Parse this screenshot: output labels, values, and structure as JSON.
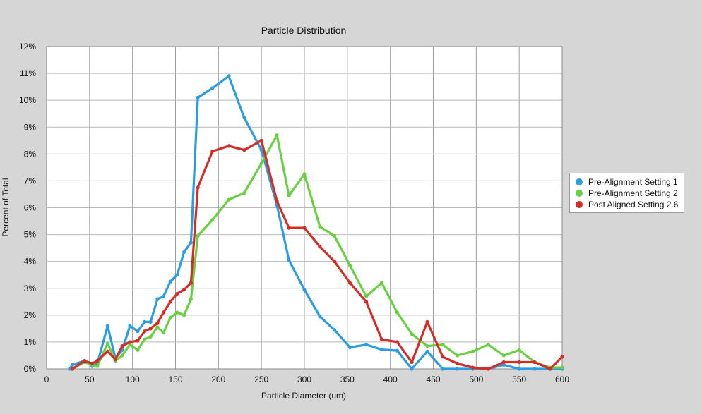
{
  "chart_data": {
    "type": "line",
    "title": "Particle Distribution",
    "xlabel": "Particle Diameter (um)",
    "ylabel": "Percent of Total",
    "xlim": [
      0,
      600
    ],
    "ylim": [
      0,
      12
    ],
    "xticks": [
      0,
      50,
      100,
      150,
      200,
      250,
      300,
      350,
      400,
      450,
      500,
      550,
      600
    ],
    "xtick_labels": [
      "0",
      "50",
      "100",
      "150",
      "200",
      "250",
      "300",
      "350",
      "400",
      "450",
      "500",
      "550",
      "600"
    ],
    "yticks": [
      0,
      1,
      2,
      3,
      4,
      5,
      6,
      7,
      8,
      9,
      10,
      11,
      12
    ],
    "ytick_labels": [
      "0%",
      "1%",
      "2%",
      "3%",
      "4%",
      "5%",
      "6%",
      "7%",
      "8%",
      "9%",
      "10%",
      "11%",
      "12%"
    ],
    "grid": true,
    "legend_position": "right",
    "series": [
      {
        "name": "Pre-Alignment Setting 1",
        "color": "#2a9de1",
        "x": [
          27,
          30,
          44,
          53,
          59,
          71,
          80,
          88,
          97,
          106,
          114,
          121,
          129,
          136,
          144,
          152,
          160,
          168,
          176,
          193,
          212,
          230,
          250,
          268,
          282,
          300,
          318,
          335,
          353,
          372,
          390,
          408,
          425,
          443,
          461,
          478,
          496,
          514,
          532,
          550,
          568,
          586,
          600
        ],
        "y": [
          0.0,
          0.15,
          0.3,
          0.1,
          0.2,
          1.6,
          0.4,
          0.7,
          1.6,
          1.4,
          1.75,
          1.75,
          2.6,
          2.7,
          3.25,
          3.5,
          4.35,
          4.7,
          10.1,
          10.45,
          10.9,
          9.35,
          8.15,
          6.1,
          4.05,
          2.95,
          1.95,
          1.45,
          0.8,
          0.9,
          0.72,
          0.68,
          0.0,
          0.65,
          0.0,
          0.0,
          0.0,
          0.0,
          0.15,
          0.0,
          0.0,
          0.0,
          0.0
        ]
      },
      {
        "name": "Pre-Alignment Setting 2",
        "color": "#68d141",
        "x": [
          30,
          44,
          53,
          59,
          71,
          80,
          88,
          97,
          106,
          114,
          121,
          129,
          136,
          144,
          152,
          160,
          168,
          176,
          193,
          212,
          230,
          250,
          268,
          282,
          300,
          318,
          335,
          353,
          372,
          390,
          408,
          425,
          443,
          461,
          478,
          496,
          514,
          532,
          550,
          568,
          586,
          600
        ],
        "y": [
          0.0,
          0.25,
          0.15,
          0.1,
          0.95,
          0.3,
          0.5,
          0.9,
          0.7,
          1.1,
          1.2,
          1.55,
          1.35,
          1.9,
          2.1,
          2.0,
          2.6,
          4.95,
          5.55,
          6.3,
          6.55,
          7.65,
          8.7,
          6.45,
          7.25,
          5.3,
          4.95,
          3.85,
          2.7,
          3.2,
          2.1,
          1.3,
          0.85,
          0.9,
          0.5,
          0.65,
          0.9,
          0.5,
          0.7,
          0.25,
          0.05,
          0.05
        ]
      },
      {
        "name": "Post Aligned Setting 2.6",
        "color": "#d62b27",
        "x": [
          30,
          44,
          53,
          59,
          71,
          80,
          88,
          97,
          106,
          114,
          121,
          129,
          136,
          144,
          152,
          160,
          168,
          176,
          193,
          212,
          230,
          250,
          268,
          282,
          300,
          318,
          335,
          353,
          372,
          390,
          408,
          425,
          443,
          461,
          478,
          496,
          514,
          532,
          550,
          568,
          586,
          600
        ],
        "y": [
          0.0,
          0.3,
          0.2,
          0.3,
          0.65,
          0.35,
          0.85,
          1.0,
          1.05,
          1.4,
          1.5,
          1.7,
          2.1,
          2.5,
          2.8,
          2.95,
          3.2,
          6.75,
          8.1,
          8.3,
          8.15,
          8.5,
          6.25,
          5.25,
          5.25,
          4.55,
          4.0,
          3.2,
          2.5,
          1.1,
          1.0,
          0.25,
          1.75,
          0.45,
          0.2,
          0.05,
          0.0,
          0.25,
          0.25,
          0.25,
          0.0,
          0.45
        ]
      }
    ]
  }
}
